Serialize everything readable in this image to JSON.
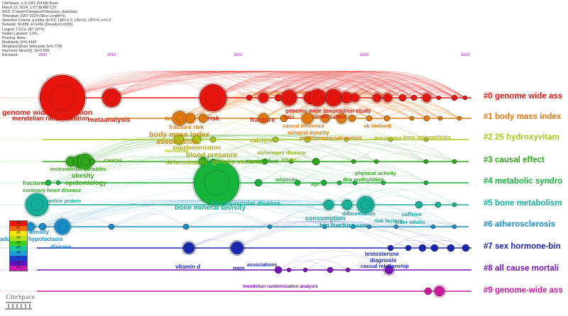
{
  "meta": [
    "CiteSpace, v. 6.3.R1 (64-bit) Basic",
    "March 22, 2024, 1:27:38 AM CST",
    "WoS: D:\\learn\\Citespace\\Citespace_data\\data",
    "Timespan: 2007-2024 (Slice Length=1)",
    "Selection Criteria: g-index (k=10), LRF=2.5, L/N=10, LBY=5, e=1.0",
    "Network: N=289, E=1456 (Density=0.0335)",
    "Largest 1 CCs: 287 (97%)",
    "Nodes Labeled: 1.0%",
    "Pruning: None",
    "Modularity Q=0.4442",
    "Weighted Mean Silhouette S=0.7796",
    "Harmonic Mean(Q, S)=0.566",
    "Excluded:"
  ],
  "years": [
    "2007",
    "2010",
    "2015",
    "2020",
    "2024"
  ],
  "clusters": [
    {
      "label": "#0 genome wide ass",
      "color": "#e8150f"
    },
    {
      "label": "#1 body mass index",
      "color": "#e07a10"
    },
    {
      "label": "#2 25 hydroxyvitam",
      "color": "#a8c81e"
    },
    {
      "label": "#3 causal effect",
      "color": "#2ea81a"
    },
    {
      "label": "#4 metabolic syndro",
      "color": "#17b43c"
    },
    {
      "label": "#5 bone metabolism",
      "color": "#14b09a"
    },
    {
      "label": "#6 atherosclerosis",
      "color": "#1a8cc8"
    },
    {
      "label": "#7 sex hormone-bin",
      "color": "#1a28b0"
    },
    {
      "label": "#8 all cause mortali",
      "color": "#7a12b8"
    },
    {
      "label": "#9 genome-wide ass",
      "color": "#d0189e"
    }
  ],
  "keywords": [
    {
      "text": "genome wide association",
      "color": "#d82010"
    },
    {
      "text": "mendelian randomization",
      "color": "#d82010"
    },
    {
      "text": "metaanalysis",
      "color": "#d82010"
    },
    {
      "text": "women",
      "color": "#e07a10"
    },
    {
      "text": "risk",
      "color": "#d82010"
    },
    {
      "text": "fracture",
      "color": "#d82010"
    },
    {
      "text": "fracture risk",
      "color": "#e07a10"
    },
    {
      "text": "genome wide association study",
      "color": "#d82010"
    },
    {
      "text": "loci",
      "color": "#d82010"
    },
    {
      "text": "identification",
      "color": "#d82010"
    },
    {
      "text": "causal inference",
      "color": "#e07a10"
    },
    {
      "text": "uk biobank",
      "color": "#e07a10"
    },
    {
      "text": "mineral density",
      "color": "#e07a10"
    },
    {
      "text": "postmenopausal women",
      "color": "#e07a10"
    },
    {
      "text": "body mass index",
      "color": "#d08a10"
    },
    {
      "text": "association",
      "color": "#d08a10"
    },
    {
      "text": "supplementation",
      "color": "#b0a818"
    },
    {
      "text": "blood pressure",
      "color": "#b0a818"
    },
    {
      "text": "metabolism",
      "color": "#a8c81e"
    },
    {
      "text": "calcium",
      "color": "#b0b418"
    },
    {
      "text": "prevalence",
      "color": "#b0b418"
    },
    {
      "text": "knee osteoarthritis",
      "color": "#b0b418"
    },
    {
      "text": "genetic variants",
      "color": "#8cb418"
    },
    {
      "text": "determinants",
      "color": "#8cb418"
    },
    {
      "text": "alzheimers disease",
      "color": "#8cb418"
    },
    {
      "text": "adults",
      "color": "#8cb418"
    },
    {
      "text": "cancer",
      "color": "#5aa81a"
    },
    {
      "text": "instrumental variables",
      "color": "#3ea81a"
    },
    {
      "text": "obesity",
      "color": "#3ea81a"
    },
    {
      "text": "epidemiology",
      "color": "#3ea81a"
    },
    {
      "text": "fractures",
      "color": "#2ea81a"
    },
    {
      "text": "coronary heart disease",
      "color": "#2ea81a"
    },
    {
      "text": "causal effect",
      "color": "#2ea81a"
    },
    {
      "text": "adiposity",
      "color": "#2ea81a"
    },
    {
      "text": "age",
      "color": "#2ea81a"
    },
    {
      "text": "physical activity",
      "color": "#2ea81a"
    },
    {
      "text": "dna methylation",
      "color": "#2ea81a"
    },
    {
      "text": "c reactive protein",
      "color": "#14b09a"
    },
    {
      "text": "bone mineral density",
      "color": "#14b09a"
    },
    {
      "text": "cardiovascular disease",
      "color": "#14b09a"
    },
    {
      "text": "consumption",
      "color": "#14a0a0"
    },
    {
      "text": "differentiation",
      "color": "#14a0a0"
    },
    {
      "text": "hip fracture",
      "color": "#14a0a0"
    },
    {
      "text": "health",
      "color": "#14a0a0"
    },
    {
      "text": "caffeine",
      "color": "#14a0a0"
    },
    {
      "text": "risk factors",
      "color": "#14a0a0"
    },
    {
      "text": "older adults",
      "color": "#14a0a0"
    },
    {
      "text": "density",
      "color": "#1a8cc8"
    },
    {
      "text": "adult type hypolactasia",
      "color": "#1a8cc8"
    },
    {
      "text": "disease",
      "color": "#1a8cc8"
    },
    {
      "text": "testosterone",
      "color": "#1a28b0"
    },
    {
      "text": "diagnosis",
      "color": "#1a28b0"
    },
    {
      "text": "vitamin d",
      "color": "#1a28b0"
    },
    {
      "text": "men",
      "color": "#1a28b0"
    },
    {
      "text": "associations",
      "color": "#1a28b0"
    },
    {
      "text": "causal relationship",
      "color": "#1a28b0"
    },
    {
      "text": "mendelian randomization analysis",
      "color": "#7a12b8"
    }
  ],
  "legend": [
    "#0",
    "#1",
    "#2",
    "#3",
    "#4",
    "#5",
    "#6",
    "#7",
    "#8",
    "#9"
  ],
  "logo": "CiteSpace"
}
